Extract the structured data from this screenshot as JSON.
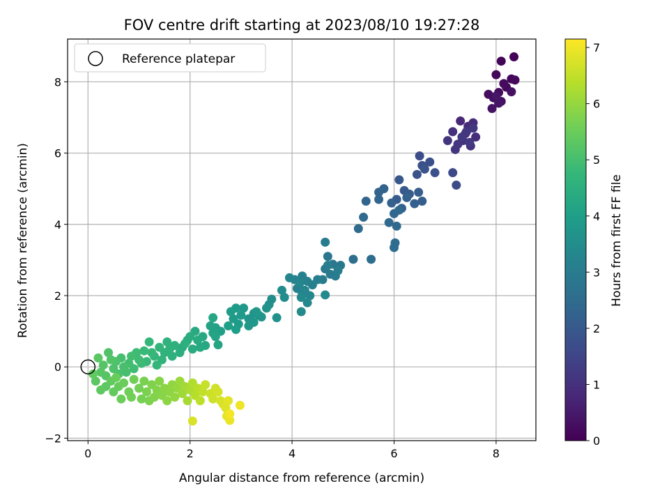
{
  "chart_data": {
    "type": "scatter",
    "title": "FOV centre drift starting at 2023/08/10 19:27:28",
    "xlabel": "Angular distance from reference (arcmin)",
    "ylabel": "Rotation from reference (arcmin)",
    "xlim": [
      -0.4,
      8.78
    ],
    "ylim": [
      -2.07,
      9.2
    ],
    "xticks": [
      0,
      2,
      4,
      6,
      8
    ],
    "yticks": [
      -2,
      0,
      2,
      4,
      6,
      8
    ],
    "grid": true,
    "legend": {
      "placement": "upper-left",
      "entries": [
        {
          "label": "Reference platepar",
          "marker": "hollow-circle"
        }
      ]
    },
    "reference_point": {
      "x": 0,
      "y": 0
    },
    "colorbar": {
      "label": "Hours from first FF file",
      "min": 0,
      "max": 7.15,
      "ticks": [
        0,
        1,
        2,
        3,
        4,
        5,
        6,
        7
      ],
      "colormap": "viridis"
    },
    "points": [
      [
        8.35,
        8.7,
        0.05
      ],
      [
        8.1,
        8.58,
        0.08
      ],
      [
        8.3,
        8.08,
        0.1
      ],
      [
        8.0,
        8.2,
        0.12
      ],
      [
        8.2,
        7.85,
        0.15
      ],
      [
        8.37,
        8.05,
        0.18
      ],
      [
        8.05,
        7.7,
        0.2
      ],
      [
        8.15,
        7.95,
        0.22
      ],
      [
        7.85,
        7.65,
        0.25
      ],
      [
        7.95,
        7.55,
        0.28
      ],
      [
        8.1,
        7.45,
        0.3
      ],
      [
        8.3,
        7.72,
        0.33
      ],
      [
        7.92,
        7.25,
        0.36
      ],
      [
        8.05,
        7.4,
        0.4
      ],
      [
        8.0,
        7.6,
        0.43
      ],
      [
        7.3,
        6.9,
        0.8
      ],
      [
        7.45,
        6.75,
        0.85
      ],
      [
        7.55,
        6.85,
        0.88
      ],
      [
        7.4,
        6.55,
        0.9
      ],
      [
        7.6,
        6.45,
        0.95
      ],
      [
        7.15,
        6.6,
        1.0
      ],
      [
        7.35,
        6.35,
        1.02
      ],
      [
        7.5,
        6.2,
        1.05
      ],
      [
        7.05,
        6.35,
        1.08
      ],
      [
        7.2,
        6.1,
        1.1
      ],
      [
        7.42,
        6.6,
        1.12
      ],
      [
        7.25,
        6.25,
        1.15
      ],
      [
        7.55,
        6.7,
        1.18
      ],
      [
        7.33,
        6.45,
        1.2
      ],
      [
        7.48,
        6.3,
        1.23
      ],
      [
        6.5,
        5.92,
        1.7
      ],
      [
        6.7,
        5.75,
        1.75
      ],
      [
        6.55,
        5.65,
        1.78
      ],
      [
        6.8,
        5.45,
        1.8
      ],
      [
        6.45,
        5.4,
        1.85
      ],
      [
        6.6,
        5.55,
        1.88
      ],
      [
        7.15,
        5.45,
        1.6
      ],
      [
        7.22,
        5.1,
        1.65
      ],
      [
        6.1,
        5.25,
        1.95
      ],
      [
        6.2,
        4.95,
        2.0
      ],
      [
        6.05,
        4.7,
        2.05
      ],
      [
        6.3,
        4.85,
        2.08
      ],
      [
        6.48,
        4.9,
        2.1
      ],
      [
        6.55,
        4.65,
        2.12
      ],
      [
        6.4,
        4.58,
        2.15
      ],
      [
        6.15,
        4.45,
        2.18
      ],
      [
        5.95,
        4.6,
        2.2
      ],
      [
        6.25,
        4.75,
        2.22
      ],
      [
        5.8,
        5.0,
        2.25
      ],
      [
        5.7,
        4.9,
        2.28
      ],
      [
        5.45,
        4.65,
        2.3
      ],
      [
        5.7,
        4.7,
        2.33
      ],
      [
        6.0,
        4.3,
        2.35
      ],
      [
        6.1,
        4.4,
        2.38
      ],
      [
        5.9,
        4.05,
        2.4
      ],
      [
        6.05,
        3.95,
        2.42
      ],
      [
        5.4,
        4.2,
        2.45
      ],
      [
        5.3,
        3.88,
        2.48
      ],
      [
        6.0,
        3.35,
        2.5
      ],
      [
        6.02,
        3.48,
        2.52
      ],
      [
        5.55,
        3.02,
        2.55
      ],
      [
        5.2,
        3.02,
        2.6
      ],
      [
        4.7,
        3.1,
        2.8
      ],
      [
        4.8,
        2.88,
        2.85
      ],
      [
        4.95,
        2.85,
        2.88
      ],
      [
        4.65,
        2.75,
        2.9
      ],
      [
        4.75,
        2.6,
        2.92
      ],
      [
        4.85,
        2.55,
        2.95
      ],
      [
        4.6,
        2.45,
        2.98
      ],
      [
        4.65,
        3.5,
        3.0
      ],
      [
        4.9,
        2.7,
        3.02
      ],
      [
        4.7,
        2.85,
        3.05
      ],
      [
        4.5,
        2.45,
        3.08
      ],
      [
        4.4,
        2.3,
        3.1
      ],
      [
        4.2,
        2.55,
        3.12
      ],
      [
        4.3,
        2.4,
        3.15
      ],
      [
        4.1,
        2.2,
        3.18
      ],
      [
        4.2,
        2.05,
        3.2
      ],
      [
        4.05,
        2.45,
        3.22
      ],
      [
        3.95,
        2.5,
        3.25
      ],
      [
        4.15,
        2.35,
        3.28
      ],
      [
        4.25,
        2.15,
        3.3
      ],
      [
        4.35,
        2.0,
        3.33
      ],
      [
        4.3,
        1.8,
        3.35
      ],
      [
        4.18,
        1.95,
        3.38
      ],
      [
        4.65,
        2.02,
        3.4
      ],
      [
        4.18,
        1.55,
        3.42
      ],
      [
        3.8,
        2.15,
        3.45
      ],
      [
        3.85,
        1.95,
        3.48
      ],
      [
        3.6,
        1.9,
        3.5
      ],
      [
        3.55,
        1.75,
        3.55
      ],
      [
        3.7,
        1.38,
        3.6
      ],
      [
        3.5,
        1.65,
        3.62
      ],
      [
        3.35,
        1.45,
        3.65
      ],
      [
        3.4,
        1.4,
        3.68
      ],
      [
        3.25,
        1.5,
        3.7
      ],
      [
        3.15,
        1.35,
        3.72
      ],
      [
        3.25,
        1.25,
        3.75
      ],
      [
        3.15,
        1.15,
        3.78
      ],
      [
        3.3,
        1.55,
        3.8
      ],
      [
        3.05,
        1.65,
        3.82
      ],
      [
        3.0,
        1.45,
        3.85
      ],
      [
        2.9,
        1.65,
        3.88
      ],
      [
        2.85,
        1.35,
        3.9
      ],
      [
        2.95,
        1.2,
        3.92
      ],
      [
        2.8,
        1.55,
        3.95
      ],
      [
        2.9,
        1.05,
        3.98
      ],
      [
        2.75,
        1.15,
        4.0
      ],
      [
        2.6,
        1.0,
        4.05
      ],
      [
        2.5,
        1.1,
        4.08
      ],
      [
        2.4,
        1.15,
        4.1
      ],
      [
        2.45,
        0.95,
        4.12
      ],
      [
        2.5,
        0.85,
        4.15
      ],
      [
        2.55,
        0.62,
        4.2
      ],
      [
        2.45,
        1.38,
        4.22
      ],
      [
        2.3,
        0.6,
        4.25
      ],
      [
        2.2,
        0.55,
        4.28
      ],
      [
        2.25,
        0.85,
        4.3
      ],
      [
        2.1,
        1.0,
        4.32
      ],
      [
        2.15,
        0.75,
        4.35
      ],
      [
        2.05,
        0.5,
        4.38
      ],
      [
        1.95,
        0.75,
        4.4
      ],
      [
        1.85,
        0.55,
        4.42
      ],
      [
        2.0,
        0.85,
        4.45
      ],
      [
        1.8,
        0.4,
        4.48
      ],
      [
        1.9,
        0.65,
        4.5
      ],
      [
        1.7,
        0.6,
        4.52
      ],
      [
        1.65,
        0.3,
        4.55
      ],
      [
        1.55,
        0.7,
        4.58
      ],
      [
        1.6,
        0.5,
        4.6
      ],
      [
        1.5,
        0.4,
        4.62
      ],
      [
        1.45,
        0.2,
        4.65
      ],
      [
        1.4,
        0.55,
        4.68
      ],
      [
        1.3,
        0.3,
        4.7
      ],
      [
        1.35,
        0.05,
        4.72
      ],
      [
        1.2,
        0.7,
        4.75
      ],
      [
        1.25,
        0.4,
        4.78
      ],
      [
        1.15,
        0.15,
        4.8
      ],
      [
        1.1,
        0.45,
        4.82
      ],
      [
        1.05,
        0.1,
        4.85
      ],
      [
        0.95,
        0.4,
        4.88
      ],
      [
        1.0,
        0.2,
        4.9
      ],
      [
        0.9,
        -0.05,
        4.92
      ],
      [
        0.85,
        0.3,
        4.95
      ],
      [
        0.8,
        0.1,
        4.98
      ],
      [
        0.75,
        -0.15,
        5.0
      ],
      [
        0.65,
        0.25,
        5.02
      ],
      [
        0.7,
        0.0,
        5.05
      ],
      [
        0.6,
        -0.2,
        5.08
      ],
      [
        0.55,
        0.15,
        5.1
      ],
      [
        0.5,
        -0.05,
        5.12
      ],
      [
        0.4,
        0.4,
        5.15
      ],
      [
        0.45,
        0.2,
        5.18
      ],
      [
        0.35,
        -0.25,
        5.2
      ],
      [
        0.3,
        0.05,
        5.22
      ],
      [
        0.25,
        -0.15,
        5.25
      ],
      [
        0.2,
        0.25,
        5.28
      ],
      [
        0.15,
        -0.4,
        5.3
      ],
      [
        0.35,
        -0.55,
        5.32
      ],
      [
        0.25,
        -0.65,
        5.35
      ],
      [
        0.1,
        -0.2,
        5.38
      ],
      [
        0.45,
        -0.4,
        5.4
      ],
      [
        0.5,
        -0.7,
        5.42
      ],
      [
        0.6,
        -0.55,
        5.45
      ],
      [
        0.55,
        -0.3,
        5.48
      ],
      [
        0.7,
        -0.45,
        5.5
      ],
      [
        0.65,
        -0.9,
        5.52
      ],
      [
        0.8,
        -0.7,
        5.55
      ],
      [
        0.9,
        -0.35,
        5.58
      ],
      [
        0.85,
        -0.85,
        5.6
      ],
      [
        1.0,
        -0.6,
        5.62
      ],
      [
        1.05,
        -0.9,
        5.65
      ],
      [
        1.1,
        -0.4,
        5.68
      ],
      [
        1.15,
        -0.7,
        5.7
      ],
      [
        1.2,
        -0.95,
        5.72
      ],
      [
        1.25,
        -0.5,
        5.75
      ],
      [
        1.3,
        -0.85,
        5.78
      ],
      [
        1.35,
        -0.65,
        5.8
      ],
      [
        1.4,
        -0.4,
        5.82
      ],
      [
        1.45,
        -0.8,
        5.85
      ],
      [
        1.5,
        -0.6,
        5.88
      ],
      [
        1.55,
        -0.95,
        5.9
      ],
      [
        1.6,
        -0.7,
        5.92
      ],
      [
        1.65,
        -0.5,
        5.95
      ],
      [
        1.7,
        -0.85,
        5.98
      ],
      [
        1.75,
        -0.6,
        6.0
      ],
      [
        1.8,
        -0.4,
        6.05
      ],
      [
        1.85,
        -0.75,
        6.1
      ],
      [
        1.9,
        -0.55,
        6.15
      ],
      [
        1.95,
        -0.95,
        6.2
      ],
      [
        2.0,
        -0.65,
        6.25
      ],
      [
        2.05,
        -0.45,
        6.3
      ],
      [
        2.1,
        -0.8,
        6.35
      ],
      [
        2.15,
        -0.6,
        6.4
      ],
      [
        2.2,
        -0.95,
        6.45
      ],
      [
        2.25,
        -0.7,
        6.5
      ],
      [
        2.3,
        -0.5,
        6.55
      ],
      [
        2.4,
        -0.75,
        6.6
      ],
      [
        2.45,
        -0.9,
        6.62
      ],
      [
        2.5,
        -0.6,
        6.65
      ],
      [
        2.55,
        -0.7,
        6.68
      ],
      [
        2.6,
        -0.95,
        6.7
      ],
      [
        2.65,
        -1.05,
        6.75
      ],
      [
        2.7,
        -1.15,
        6.8
      ],
      [
        2.72,
        -1.38,
        6.9
      ],
      [
        2.78,
        -1.5,
        6.95
      ],
      [
        2.98,
        -1.08,
        7.0
      ],
      [
        2.05,
        -1.52,
        6.75
      ],
      [
        2.78,
        -1.32,
        7.05
      ],
      [
        2.75,
        -0.95,
        6.85
      ]
    ]
  }
}
